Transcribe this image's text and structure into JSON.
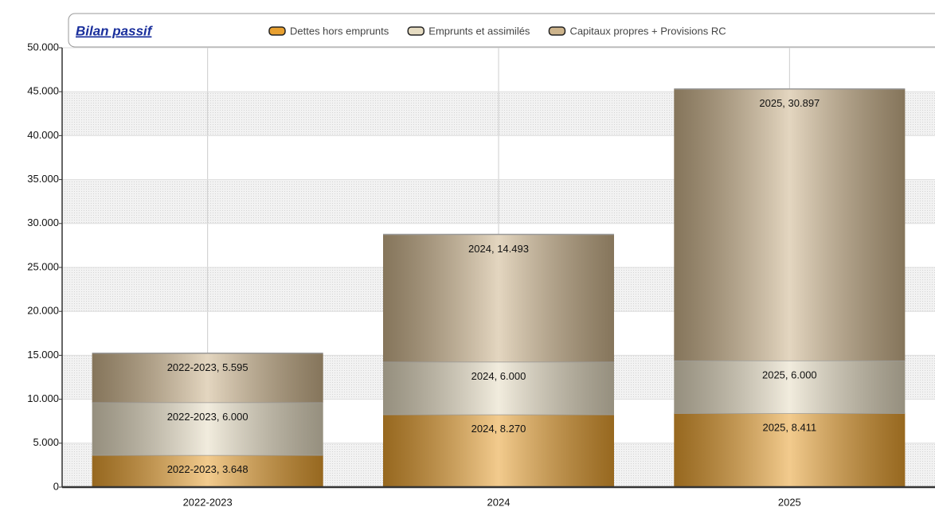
{
  "chart_data": {
    "type": "bar",
    "stacked": true,
    "title": "Bilan passif",
    "categories": [
      "2022-2023",
      "2024",
      "2025"
    ],
    "series": [
      {
        "name": "Dettes hors emprunts",
        "color": "#e8a030",
        "values": [
          3648,
          8270,
          8411
        ],
        "value_labels": [
          "2022-2023, 3.648",
          "2024, 8.270",
          "2025, 8.411"
        ]
      },
      {
        "name": "Emprunts et assimilés",
        "color": "#e6dcc2",
        "values": [
          6000,
          6000,
          6000
        ],
        "value_labels": [
          "2022-2023, 6.000",
          "2024, 6.000",
          "2025, 6.000"
        ]
      },
      {
        "name": "Capitaux propres + Provisions RC",
        "color": "#cdb48c",
        "values": [
          5595,
          14493,
          30897
        ],
        "value_labels": [
          "2022-2023, 5.595",
          "2024, 14.493",
          "2025, 30.897"
        ]
      }
    ],
    "ylim": [
      0,
      50000
    ],
    "yticks": [
      0,
      {
        "value": 5000,
        "label": "5.000"
      },
      {
        "value": 10000,
        "label": "10.000"
      },
      {
        "value": 15000,
        "label": "15.000"
      },
      {
        "value": 20000,
        "label": "20.000"
      },
      {
        "value": 25000,
        "label": "25.000"
      },
      {
        "value": 30000,
        "label": "30.000"
      },
      {
        "value": 35000,
        "label": "35.000"
      },
      {
        "value": 40000,
        "label": "40.000"
      },
      {
        "value": 45000,
        "label": "45.000"
      },
      {
        "value": 50000,
        "label": "50.000"
      }
    ],
    "grid": true,
    "legend": "top"
  }
}
